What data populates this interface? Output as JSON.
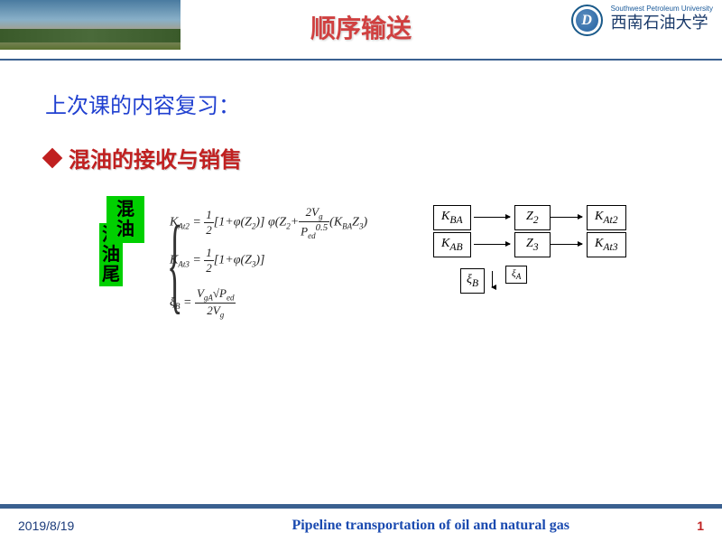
{
  "header": {
    "title": "顺序输送",
    "logo_en": "Southwest Petroleum University",
    "logo_cn": "西南石油大学",
    "logo_letter": "D"
  },
  "content": {
    "review_label": "上次课的内容复习：",
    "bullet": "混油的接收与销售",
    "green_label_1": "混油",
    "green_label_2": "混油尾",
    "eq1_html": "K<span class='sub'>At2</span> = <span class='frac'><span class='n'>1</span><span class='d'>2</span></span>[1+φ(Z<span class='sub'>2</span>)] φ(Z<span class='sub'>2</span>+<span class='frac'><span class='n'>2V<span class='sub'>g</span></span><span class='d'>P<span class='sub'>ed</span><sup>0.5</sup></span></span>(K<span class='sub'>BA</span>Z<span class='sub'>3</span>)",
    "eq2_html": "K<span class='sub'>At3</span> = <span class='frac'><span class='n'>1</span><span class='d'>2</span></span>[1+φ(Z<span class='sub'>3</span>)]",
    "eq3_html": "ξ<span class='sub'>B</span> = <span class='frac'><span class='n'>V<span class='sub'>gA</span>√P<span class='sub'>ed</span></span><span class='d'>2V<span class='sub'>g</span></span></span>",
    "diagram": {
      "kba": "K<sub>BA</sub>",
      "kab": "K<sub>AB</sub>",
      "z2": "Z<sub>2</sub>",
      "z3": "Z<sub>3</sub>",
      "kat2": "K<sub>At2</sub>",
      "kat3": "K<sub>At3</sub>",
      "xib": "ξ<sub>B</sub>",
      "xia": "ξ<sub>A</sub>"
    }
  },
  "footer": {
    "date": "2019/8/19",
    "title": "Pipeline transportation of oil and natural gas",
    "page": "1"
  }
}
